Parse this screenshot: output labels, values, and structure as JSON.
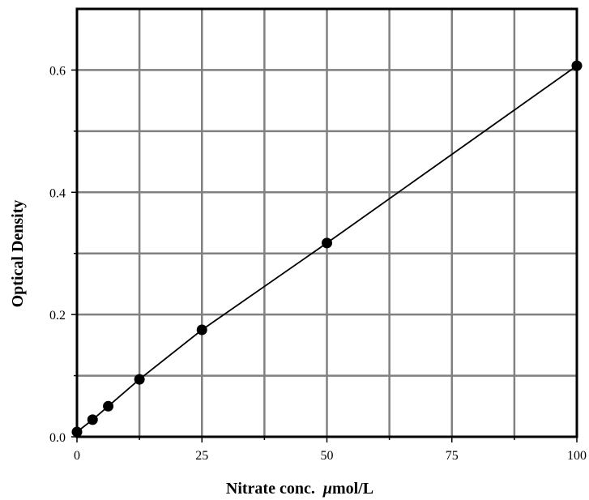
{
  "chart_data": {
    "type": "line",
    "title": "",
    "xlabel": "Nitrate conc.  μmol/L",
    "xlabel_parts": {
      "prefix": "Nitrate conc.  ",
      "mu": "μ",
      "suffix": "mol/L"
    },
    "ylabel": "Optical Density",
    "xlim": [
      0,
      100
    ],
    "ylim": [
      0,
      0.7
    ],
    "x_ticks": [
      0,
      25,
      50,
      75,
      100
    ],
    "x_tick_labels": [
      "0",
      "25",
      "50",
      "75",
      "100"
    ],
    "x_minor_ticks": [
      12.5,
      37.5,
      62.5,
      87.5
    ],
    "y_ticks": [
      0,
      0.2,
      0.4,
      0.6
    ],
    "y_tick_labels": [
      "0.0",
      "0.2",
      "0.4",
      "0.6"
    ],
    "y_minor_ticks": [
      0.1,
      0.3,
      0.5
    ],
    "grid": true,
    "legend": "none",
    "colors": {
      "grid": "#808080",
      "frame": "#000000",
      "line": "#000000",
      "marker": "#000000"
    },
    "series": [
      {
        "x": [
          0,
          3.125,
          6.25,
          12.5,
          25,
          50,
          100
        ],
        "y": [
          0.008,
          0.028,
          0.05,
          0.094,
          0.175,
          0.317,
          0.607
        ]
      }
    ]
  }
}
